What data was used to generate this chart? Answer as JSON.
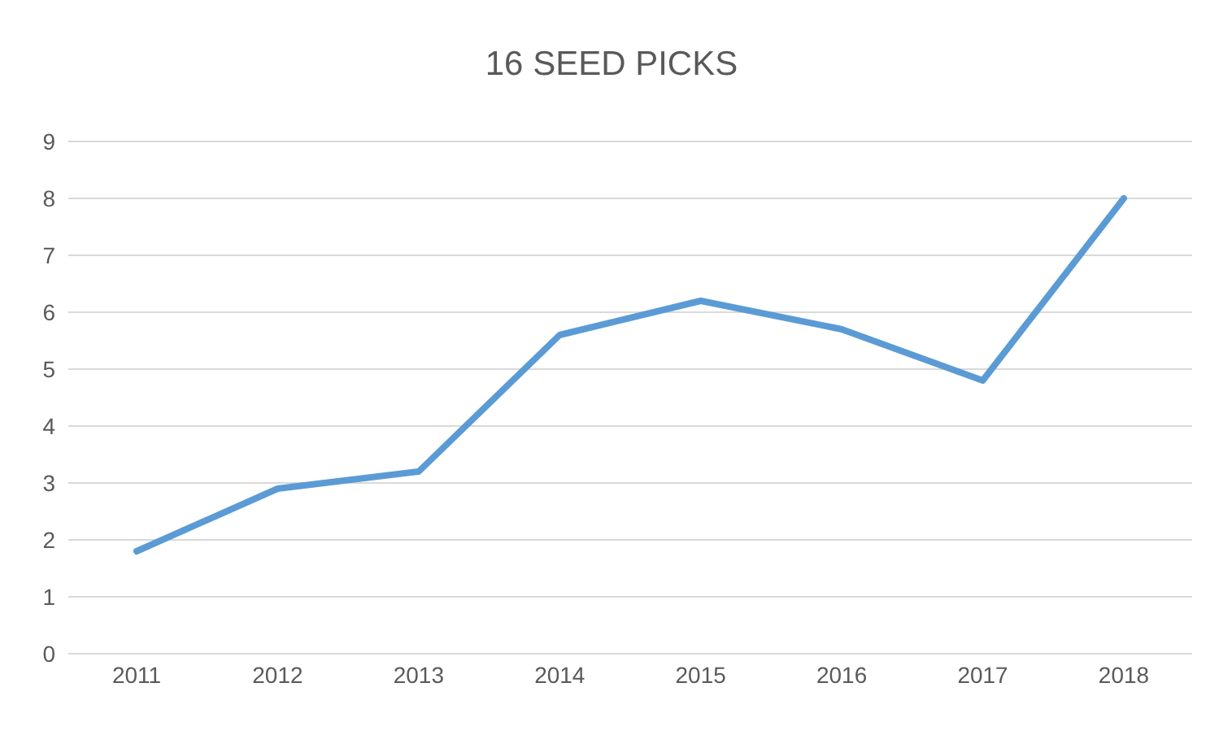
{
  "chart_data": {
    "type": "line",
    "title": "16 SEED PICKS",
    "categories": [
      "2011",
      "2012",
      "2013",
      "2014",
      "2015",
      "2016",
      "2017",
      "2018"
    ],
    "series": [
      {
        "color": "#5b9bd5",
        "values": [
          1.8,
          2.9,
          3.2,
          5.6,
          6.2,
          5.7,
          4.8,
          8.0
        ]
      }
    ],
    "ylim": [
      0,
      9
    ],
    "yticks": [
      0,
      1,
      2,
      3,
      4,
      5,
      6,
      7,
      8,
      9
    ],
    "grid": "y",
    "legend": false,
    "marker": "none",
    "line_style": "solid"
  }
}
